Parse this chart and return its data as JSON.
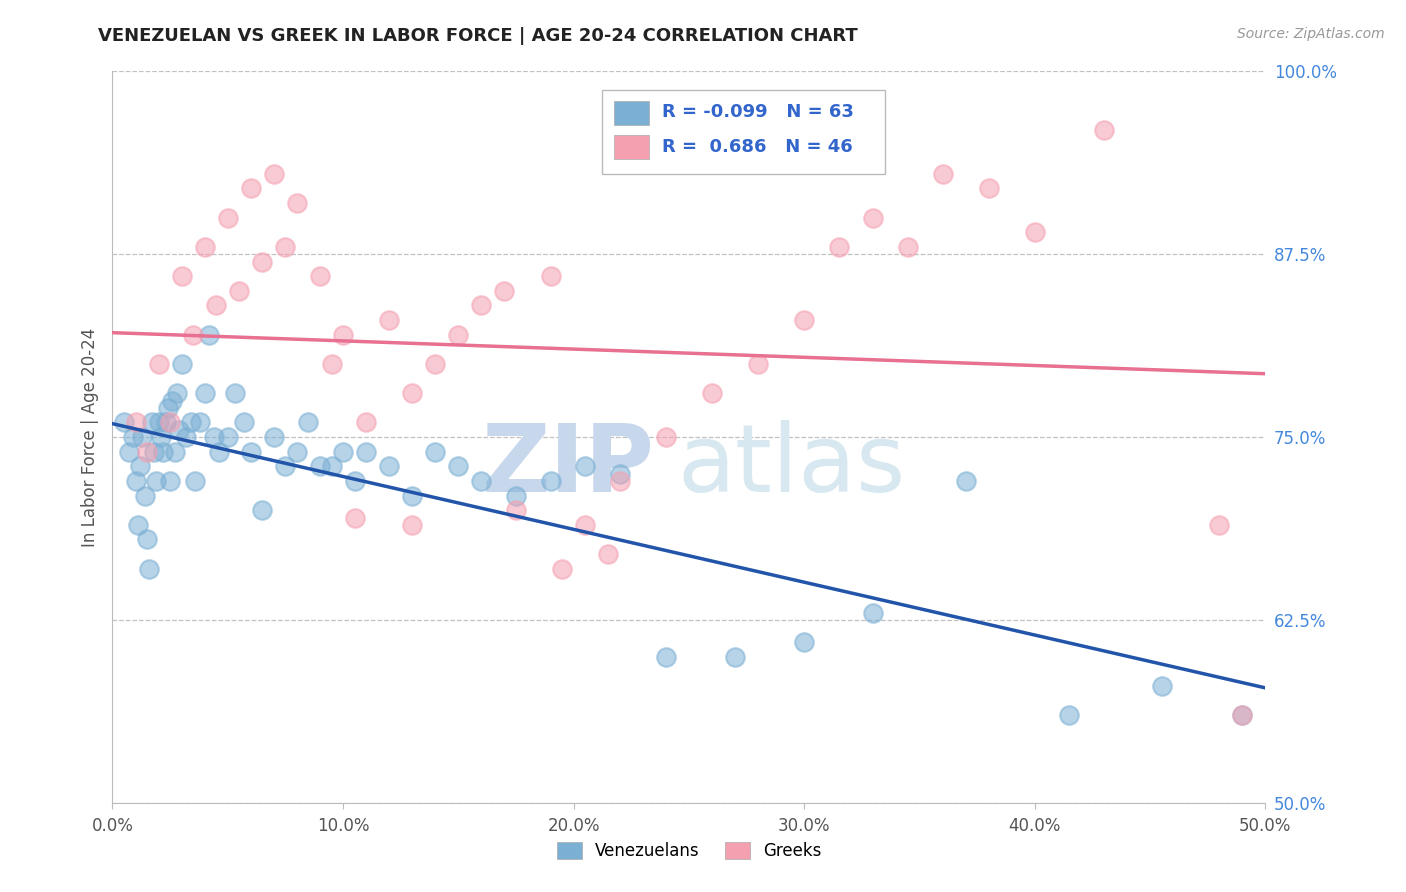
{
  "title": "VENEZUELAN VS GREEK IN LABOR FORCE | AGE 20-24 CORRELATION CHART",
  "source_text": "Source: ZipAtlas.com",
  "ylabel": "In Labor Force | Age 20-24",
  "xlim": [
    0.0,
    0.5
  ],
  "ylim": [
    0.5,
    1.0
  ],
  "xticks": [
    0.0,
    0.1,
    0.2,
    0.3,
    0.4,
    0.5
  ],
  "yticks": [
    0.5,
    0.625,
    0.75,
    0.875,
    1.0
  ],
  "ytick_labels": [
    "50.0%",
    "62.5%",
    "75.0%",
    "87.5%",
    "100.0%"
  ],
  "xtick_labels": [
    "0.0%",
    "10.0%",
    "20.0%",
    "30.0%",
    "40.0%",
    "50.0%"
  ],
  "venezuelan_color": "#7BAFD4",
  "greek_color": "#F4A0B0",
  "venezuelan_line_color": "#2255AA",
  "greek_line_color": "#E87090",
  "venezuelan_R": -0.099,
  "venezuelan_N": 63,
  "greek_R": 0.686,
  "greek_N": 46,
  "watermark_zip": "ZIP",
  "watermark_atlas": "atlas",
  "venezuelan_x": [
    0.005,
    0.007,
    0.009,
    0.01,
    0.011,
    0.012,
    0.013,
    0.014,
    0.015,
    0.016,
    0.017,
    0.018,
    0.019,
    0.02,
    0.021,
    0.022,
    0.023,
    0.024,
    0.025,
    0.026,
    0.027,
    0.028,
    0.029,
    0.03,
    0.032,
    0.034,
    0.036,
    0.038,
    0.04,
    0.042,
    0.044,
    0.046,
    0.05,
    0.053,
    0.057,
    0.06,
    0.065,
    0.07,
    0.075,
    0.08,
    0.085,
    0.09,
    0.095,
    0.1,
    0.105,
    0.11,
    0.12,
    0.13,
    0.14,
    0.15,
    0.16,
    0.175,
    0.19,
    0.205,
    0.22,
    0.24,
    0.27,
    0.3,
    0.33,
    0.37,
    0.415,
    0.455,
    0.49
  ],
  "venezuelan_y": [
    0.76,
    0.74,
    0.75,
    0.72,
    0.69,
    0.73,
    0.75,
    0.71,
    0.68,
    0.66,
    0.76,
    0.74,
    0.72,
    0.76,
    0.75,
    0.74,
    0.76,
    0.77,
    0.72,
    0.775,
    0.74,
    0.78,
    0.755,
    0.8,
    0.75,
    0.76,
    0.72,
    0.76,
    0.78,
    0.82,
    0.75,
    0.74,
    0.75,
    0.78,
    0.76,
    0.74,
    0.7,
    0.75,
    0.73,
    0.74,
    0.76,
    0.73,
    0.73,
    0.74,
    0.72,
    0.74,
    0.73,
    0.71,
    0.74,
    0.73,
    0.72,
    0.71,
    0.72,
    0.73,
    0.725,
    0.6,
    0.6,
    0.61,
    0.63,
    0.72,
    0.56,
    0.58,
    0.56
  ],
  "greek_x": [
    0.01,
    0.015,
    0.02,
    0.025,
    0.03,
    0.035,
    0.04,
    0.045,
    0.05,
    0.055,
    0.06,
    0.065,
    0.07,
    0.075,
    0.08,
    0.09,
    0.095,
    0.1,
    0.11,
    0.12,
    0.13,
    0.14,
    0.15,
    0.16,
    0.175,
    0.19,
    0.205,
    0.22,
    0.24,
    0.26,
    0.28,
    0.3,
    0.17,
    0.195,
    0.215,
    0.315,
    0.33,
    0.345,
    0.36,
    0.38,
    0.4,
    0.43,
    0.13,
    0.105,
    0.48,
    0.49
  ],
  "greek_y": [
    0.76,
    0.74,
    0.8,
    0.76,
    0.86,
    0.82,
    0.88,
    0.84,
    0.9,
    0.85,
    0.92,
    0.87,
    0.93,
    0.88,
    0.91,
    0.86,
    0.8,
    0.82,
    0.76,
    0.83,
    0.78,
    0.8,
    0.82,
    0.84,
    0.7,
    0.86,
    0.69,
    0.72,
    0.75,
    0.78,
    0.8,
    0.83,
    0.85,
    0.66,
    0.67,
    0.88,
    0.9,
    0.88,
    0.93,
    0.92,
    0.89,
    0.96,
    0.69,
    0.695,
    0.69,
    0.56
  ]
}
